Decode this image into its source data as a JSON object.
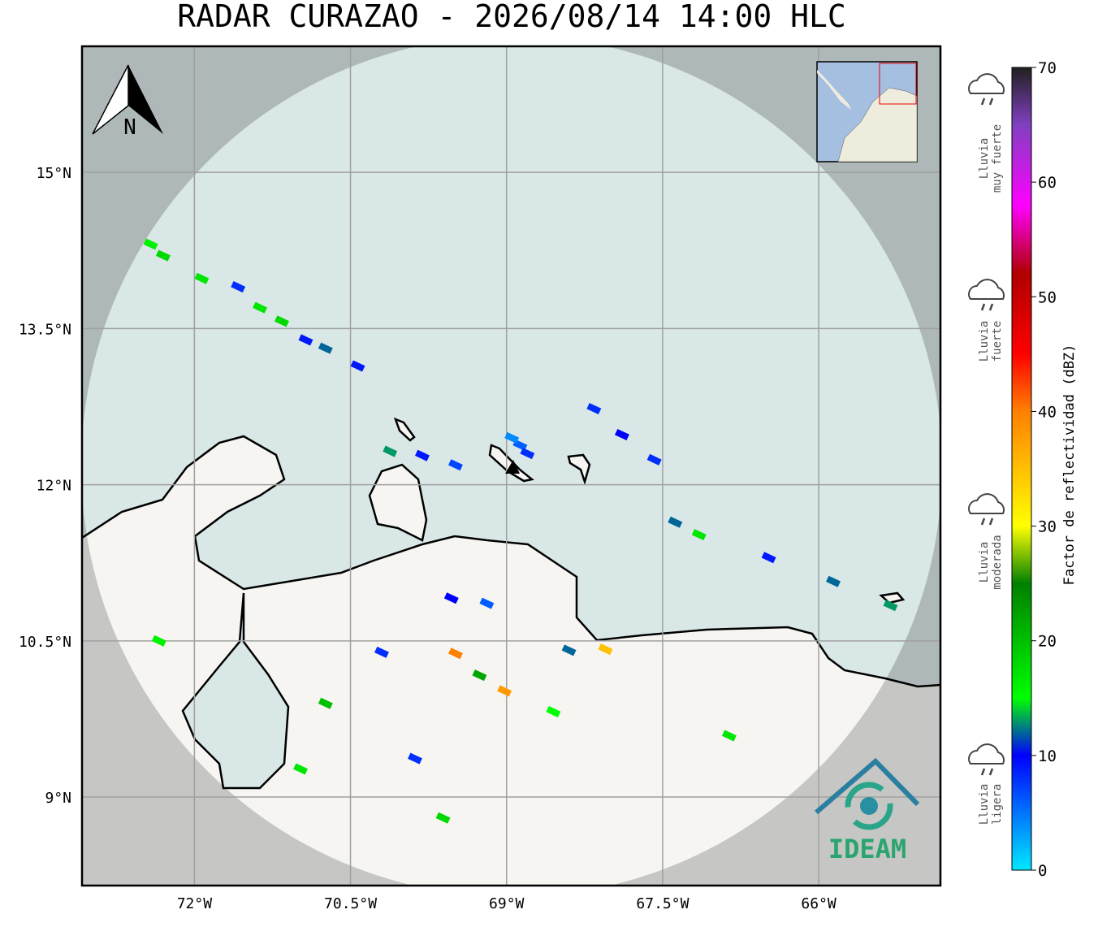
{
  "title": "RADAR CURAZAO - 2026/08/14 14:00 HLC",
  "map": {
    "xlim": [
      -73.08,
      -64.83
    ],
    "ylim": [
      8.15,
      16.21
    ],
    "grid": true,
    "xticks": [
      {
        "value": -72,
        "label": "72°W"
      },
      {
        "value": -70.5,
        "label": "70.5°W"
      },
      {
        "value": -69,
        "label": "69°W"
      },
      {
        "value": -67.5,
        "label": "67.5°W"
      },
      {
        "value": -66,
        "label": "66°W"
      }
    ],
    "yticks": [
      {
        "value": 15,
        "label": "15°N"
      },
      {
        "value": 13.5,
        "label": "13.5°N"
      },
      {
        "value": 12,
        "label": "12°N"
      },
      {
        "value": 10.5,
        "label": "10.5°N"
      },
      {
        "value": 9,
        "label": "9°N"
      }
    ],
    "north_label": "N",
    "logo_text": "IDEAM",
    "echoes": [
      {
        "lon": -72.3,
        "lat": 14.2,
        "dbz": 18
      },
      {
        "lon": -72.42,
        "lat": 14.31,
        "dbz": 16
      },
      {
        "lon": -71.93,
        "lat": 13.98,
        "dbz": 17
      },
      {
        "lon": -71.58,
        "lat": 13.9,
        "dbz": 8
      },
      {
        "lon": -71.37,
        "lat": 13.7,
        "dbz": 17
      },
      {
        "lon": -71.16,
        "lat": 13.57,
        "dbz": 18
      },
      {
        "lon": -70.93,
        "lat": 13.39,
        "dbz": 9
      },
      {
        "lon": -70.74,
        "lat": 13.31,
        "dbz": 12
      },
      {
        "lon": -70.43,
        "lat": 13.14,
        "dbz": 9
      },
      {
        "lon": -70.12,
        "lat": 12.32,
        "dbz": 13
      },
      {
        "lon": -69.81,
        "lat": 12.28,
        "dbz": 9
      },
      {
        "lon": -69.49,
        "lat": 12.19,
        "dbz": 7
      },
      {
        "lon": -68.87,
        "lat": 12.38,
        "dbz": 6
      },
      {
        "lon": -68.95,
        "lat": 12.45,
        "dbz": 4
      },
      {
        "lon": -68.8,
        "lat": 12.3,
        "dbz": 8
      },
      {
        "lon": -68.16,
        "lat": 12.73,
        "dbz": 8
      },
      {
        "lon": -67.89,
        "lat": 12.48,
        "dbz": 10
      },
      {
        "lon": -67.58,
        "lat": 12.24,
        "dbz": 8
      },
      {
        "lon": -67.38,
        "lat": 11.64,
        "dbz": 12
      },
      {
        "lon": -67.15,
        "lat": 11.52,
        "dbz": 17
      },
      {
        "lon": -66.48,
        "lat": 11.3,
        "dbz": 9
      },
      {
        "lon": -65.86,
        "lat": 11.07,
        "dbz": 12
      },
      {
        "lon": -65.31,
        "lat": 10.84,
        "dbz": 13
      },
      {
        "lon": -69.26,
        "lat": 10.17,
        "dbz": 22
      },
      {
        "lon": -69.02,
        "lat": 10.02,
        "dbz": 38
      },
      {
        "lon": -69.49,
        "lat": 10.38,
        "dbz": 40
      },
      {
        "lon": -68.05,
        "lat": 10.42,
        "dbz": 35
      },
      {
        "lon": -68.4,
        "lat": 10.41,
        "dbz": 12
      },
      {
        "lon": -70.74,
        "lat": 9.9,
        "dbz": 20
      },
      {
        "lon": -69.88,
        "lat": 9.37,
        "dbz": 8
      },
      {
        "lon": -69.61,
        "lat": 8.8,
        "dbz": 18
      },
      {
        "lon": -70.98,
        "lat": 9.27,
        "dbz": 17
      },
      {
        "lon": -72.34,
        "lat": 10.5,
        "dbz": 16
      },
      {
        "lon": -68.55,
        "lat": 9.82,
        "dbz": 15
      },
      {
        "lon": -69.53,
        "lat": 10.91,
        "dbz": 10
      },
      {
        "lon": -69.19,
        "lat": 10.86,
        "dbz": 6
      },
      {
        "lon": -70.2,
        "lat": 10.39,
        "dbz": 8
      },
      {
        "lon": -66.86,
        "lat": 9.59,
        "dbz": 17
      }
    ]
  },
  "colorbar": {
    "label": "Factor de reflectividad (dBZ)",
    "lim": [
      0,
      70
    ],
    "ticks": [
      0,
      10,
      20,
      30,
      40,
      50,
      60,
      70
    ],
    "stops": [
      {
        "value": 0,
        "color": "#00e8ff"
      },
      {
        "value": 10,
        "color": "#0000ff"
      },
      {
        "value": 15,
        "color": "#00ff00"
      },
      {
        "value": 25,
        "color": "#008000"
      },
      {
        "value": 30,
        "color": "#ffff00"
      },
      {
        "value": 40,
        "color": "#ff8000"
      },
      {
        "value": 45,
        "color": "#ff0000"
      },
      {
        "value": 52,
        "color": "#b00000"
      },
      {
        "value": 58,
        "color": "#ff00ff"
      },
      {
        "value": 65,
        "color": "#8040c0"
      },
      {
        "value": 70,
        "color": "#202020"
      }
    ]
  },
  "legend": [
    {
      "lines": [
        "Lluvia",
        "muy fuerte"
      ]
    },
    {
      "lines": [
        "Lluvia",
        "fuerte"
      ]
    },
    {
      "lines": [
        "Lluvia",
        "moderada"
      ]
    },
    {
      "lines": [
        "Lluvia",
        "ligera"
      ]
    }
  ]
}
